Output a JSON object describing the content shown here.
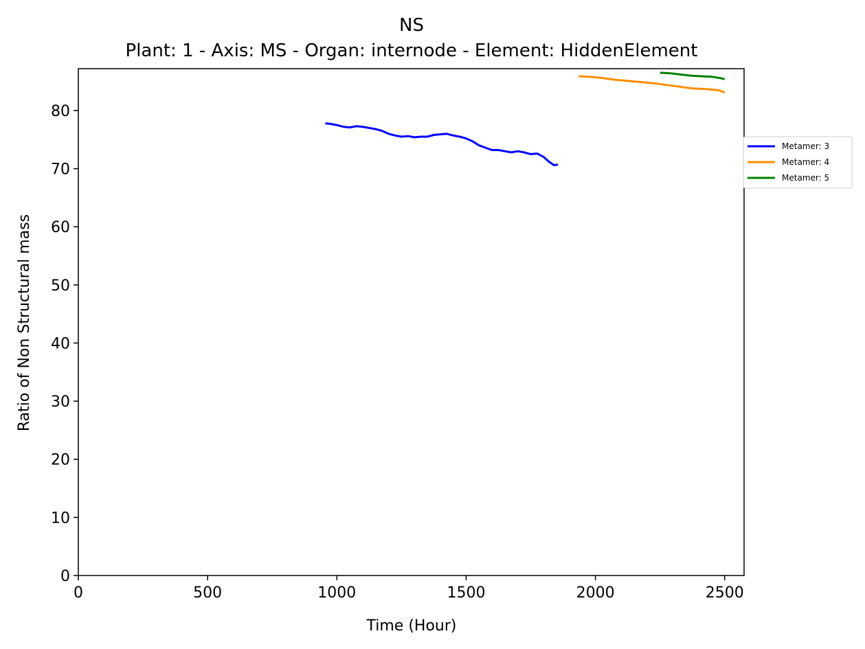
{
  "chart_data": {
    "type": "line",
    "title": "NS",
    "subtitle": "Plant: 1 - Axis: MS - Organ: internode - Element: HiddenElement",
    "xlabel": "Time (Hour)",
    "ylabel": "Ratio of Non Structural mass",
    "xlim": [
      0,
      2575
    ],
    "ylim": [
      0,
      87.2
    ],
    "xticks": [
      0,
      500,
      1000,
      1500,
      2000,
      2500
    ],
    "yticks": [
      0,
      10,
      20,
      30,
      40,
      50,
      60,
      70,
      80
    ],
    "grid": false,
    "legend_position": "right",
    "series": [
      {
        "name": "Metamer: 3",
        "color": "#0000ff",
        "x": [
          955,
          975,
          1000,
          1025,
          1050,
          1075,
          1100,
          1125,
          1150,
          1175,
          1200,
          1225,
          1250,
          1275,
          1300,
          1325,
          1350,
          1375,
          1400,
          1425,
          1450,
          1475,
          1500,
          1525,
          1550,
          1575,
          1600,
          1625,
          1650,
          1675,
          1700,
          1725,
          1750,
          1775,
          1800,
          1820,
          1840,
          1855
        ],
        "values": [
          77.8,
          77.7,
          77.5,
          77.2,
          77.1,
          77.3,
          77.2,
          77.0,
          76.8,
          76.5,
          76.0,
          75.7,
          75.5,
          75.6,
          75.4,
          75.5,
          75.5,
          75.8,
          75.9,
          76.0,
          75.7,
          75.5,
          75.2,
          74.7,
          74.0,
          73.6,
          73.2,
          73.2,
          73.0,
          72.8,
          73.0,
          72.8,
          72.5,
          72.6,
          72.0,
          71.2,
          70.6,
          70.7
        ]
      },
      {
        "name": "Metamer: 4",
        "color": "#ff8c00",
        "x": [
          1935,
          1975,
          2025,
          2075,
          2125,
          2175,
          2225,
          2275,
          2325,
          2375,
          2425,
          2475,
          2500
        ],
        "values": [
          85.9,
          85.8,
          85.6,
          85.3,
          85.1,
          84.9,
          84.7,
          84.4,
          84.1,
          83.8,
          83.7,
          83.5,
          83.1
        ]
      },
      {
        "name": "Metamer: 5",
        "color": "#008000",
        "x": [
          2250,
          2290,
          2330,
          2370,
          2410,
          2450,
          2480,
          2500
        ],
        "values": [
          86.5,
          86.4,
          86.2,
          86.0,
          85.9,
          85.8,
          85.6,
          85.4
        ]
      }
    ]
  }
}
